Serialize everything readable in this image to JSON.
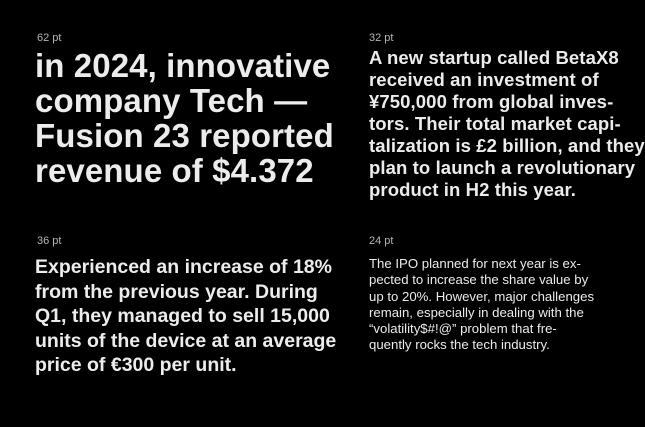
{
  "specimens": [
    {
      "size_label": "62 pt",
      "lines": [
        "in 2024, innovative",
        "company Tech —",
        "Fusion 23 reported",
        "revenue of $4.372"
      ]
    },
    {
      "size_label": "32 pt",
      "lines": [
        "A new startup called BetaX8",
        "received an investment of",
        "¥750,000 from global inves-",
        "tors. Their total market capi-",
        "talization is £2 billion, and they",
        "plan to launch a revolutionary",
        "product in H2 this year."
      ]
    },
    {
      "size_label": "36 pt",
      "lines": [
        "Experienced an increase of 18%",
        "from the previous year. During",
        "Q1, they managed to sell 15,000",
        "units of the device at an average",
        "price of €300 per unit."
      ]
    },
    {
      "size_label": "24 pt",
      "lines": [
        "The IPO planned for next year is ex-",
        "pected to increase the share value by",
        "up to 20%. However, major challenges",
        "remain, especially in dealing with the",
        "“volatility$#!@” problem that fre-",
        "quently rocks the tech industry."
      ]
    }
  ]
}
